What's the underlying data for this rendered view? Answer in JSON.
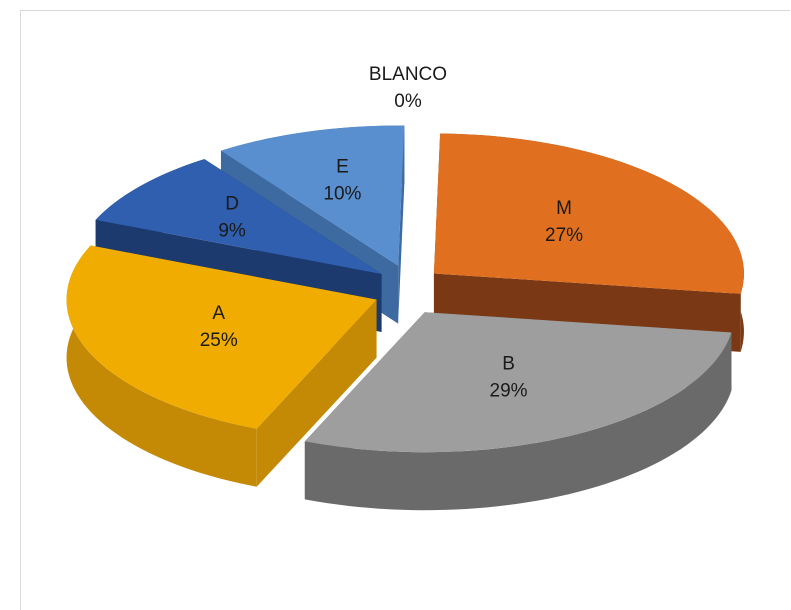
{
  "chart_data": {
    "type": "pie",
    "variant": "3d-exploded",
    "title": "",
    "slices": [
      {
        "label": "M",
        "value": 27,
        "display": "27%",
        "color": "#e07020",
        "side_color": "#7a3814"
      },
      {
        "label": "B",
        "value": 29,
        "display": "29%",
        "color": "#9e9e9e",
        "side_color": "#6a6a6a"
      },
      {
        "label": "A",
        "value": 25,
        "display": "25%",
        "color": "#f0ac00",
        "side_color": "#c48a05"
      },
      {
        "label": "D",
        "value": 9,
        "display": "9%",
        "color": "#2f5fae",
        "side_color": "#1d3a6e"
      },
      {
        "label": "E",
        "value": 10,
        "display": "10%",
        "color": "#5a8fcf",
        "side_color": "#3d6aa0"
      },
      {
        "label": "BLANCO",
        "value": 0,
        "display": "0%",
        "color": "#5a8fcf",
        "side_color": "#3d6aa0"
      }
    ],
    "legend": "none",
    "data_labels": "category-and-percent"
  }
}
